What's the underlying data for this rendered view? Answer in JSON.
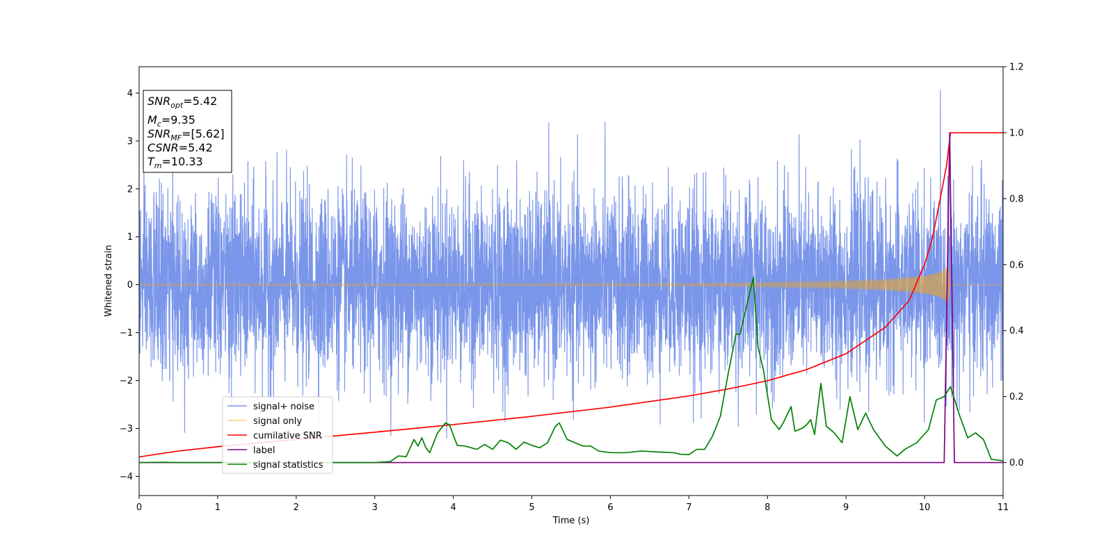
{
  "chart_data": {
    "type": "line",
    "title": "",
    "xlabel": "Time (s)",
    "ylabel": "Whitened strain",
    "xlim": [
      0,
      11
    ],
    "ylim": [
      -4.4,
      4.55
    ],
    "y2lim": [
      -0.1,
      1.2
    ],
    "xticks": [
      "0",
      "1",
      "2",
      "3",
      "4",
      "5",
      "6",
      "7",
      "8",
      "9",
      "10",
      "11"
    ],
    "yticks": [
      "−4",
      "−3",
      "−2",
      "−1",
      "0",
      "1",
      "2",
      "3",
      "4"
    ],
    "y2ticks": [
      "0.0",
      "0.2",
      "0.4",
      "0.6",
      "0.8",
      "1.0",
      "1.2"
    ],
    "grid": false,
    "legend_position": "lower-left",
    "annotation": {
      "snr_opt": {
        "base": "SNR",
        "sub": "opt",
        "value": "=5.42"
      },
      "mc": {
        "base": "M",
        "sub": "c",
        "value": "=9.35"
      },
      "snr_mf": {
        "base": "SNR",
        "sub": "MF",
        "value": "=[5.62]"
      },
      "csnr": {
        "base": "CSNR",
        "sub": "",
        "value": "=5.42"
      },
      "tm": {
        "base": "T",
        "sub": "m",
        "value": "=10.33"
      }
    },
    "series": [
      {
        "name": "signal+ noise",
        "axis": "left",
        "color": "#4169e1",
        "opacity": 0.7,
        "description_values": "Gaussian-like noise, amplitude roughly ±2.5 with spikes up to ±4, sampled over 0–11 s"
      },
      {
        "name": "signal only",
        "axis": "left",
        "color": "#ffa500",
        "opacity": 0.5,
        "envelope": {
          "x": [
            0,
            7,
            8,
            9,
            9.5,
            10,
            10.2,
            10.3,
            10.33,
            11
          ],
          "amp": [
            0.02,
            0.03,
            0.05,
            0.08,
            0.11,
            0.18,
            0.26,
            0.4,
            0.0,
            0.0
          ]
        }
      },
      {
        "name": "cumilative SNR",
        "axis": "right",
        "color": "#ff0000",
        "x": [
          0,
          0.5,
          1,
          2,
          3,
          4,
          5,
          6,
          7,
          7.5,
          8,
          8.5,
          9,
          9.5,
          9.8,
          10,
          10.1,
          10.2,
          10.28,
          10.33,
          11
        ],
        "y": [
          0.017,
          0.035,
          0.048,
          0.07,
          0.092,
          0.115,
          0.14,
          0.168,
          0.202,
          0.223,
          0.248,
          0.282,
          0.33,
          0.41,
          0.49,
          0.6,
          0.68,
          0.8,
          0.9,
          1.0,
          1.0
        ]
      },
      {
        "name": "label",
        "axis": "right",
        "color": "#800080",
        "x": [
          0,
          10.25,
          10.32,
          10.38,
          11
        ],
        "y": [
          0,
          0,
          1.0,
          0,
          0
        ]
      },
      {
        "name": "signal statistics",
        "axis": "right",
        "color": "#008000",
        "x": [
          0,
          0.3,
          0.5,
          1,
          2,
          3,
          3.2,
          3.3,
          3.4,
          3.5,
          3.55,
          3.6,
          3.65,
          3.7,
          3.8,
          3.9,
          3.95,
          4.05,
          4.15,
          4.3,
          4.4,
          4.5,
          4.6,
          4.7,
          4.8,
          4.9,
          5.0,
          5.1,
          5.2,
          5.3,
          5.35,
          5.45,
          5.55,
          5.65,
          5.75,
          5.85,
          6.0,
          6.2,
          6.4,
          6.6,
          6.8,
          6.9,
          7.0,
          7.1,
          7.2,
          7.3,
          7.4,
          7.5,
          7.6,
          7.65,
          7.7,
          7.75,
          7.82,
          7.88,
          7.95,
          8.05,
          8.15,
          8.2,
          8.3,
          8.35,
          8.45,
          8.5,
          8.55,
          8.6,
          8.68,
          8.75,
          8.85,
          8.95,
          9.05,
          9.15,
          9.25,
          9.35,
          9.5,
          9.65,
          9.75,
          9.9,
          10.05,
          10.15,
          10.25,
          10.33,
          10.45,
          10.55,
          10.65,
          10.75,
          10.85,
          11
        ],
        "y": [
          0,
          0.001,
          0,
          0,
          0,
          0,
          0.003,
          0.02,
          0.018,
          0.07,
          0.05,
          0.075,
          0.045,
          0.03,
          0.09,
          0.12,
          0.115,
          0.052,
          0.05,
          0.04,
          0.055,
          0.04,
          0.068,
          0.06,
          0.04,
          0.062,
          0.052,
          0.045,
          0.06,
          0.11,
          0.12,
          0.07,
          0.06,
          0.05,
          0.05,
          0.035,
          0.03,
          0.03,
          0.035,
          0.032,
          0.03,
          0.025,
          0.024,
          0.04,
          0.04,
          0.08,
          0.14,
          0.27,
          0.39,
          0.388,
          0.44,
          0.49,
          0.56,
          0.35,
          0.28,
          0.13,
          0.1,
          0.12,
          0.17,
          0.095,
          0.105,
          0.115,
          0.13,
          0.085,
          0.24,
          0.11,
          0.09,
          0.06,
          0.2,
          0.1,
          0.15,
          0.1,
          0.05,
          0.02,
          0.04,
          0.06,
          0.1,
          0.19,
          0.2,
          0.23,
          0.14,
          0.075,
          0.09,
          0.07,
          0.01,
          0.005
        ]
      }
    ]
  }
}
